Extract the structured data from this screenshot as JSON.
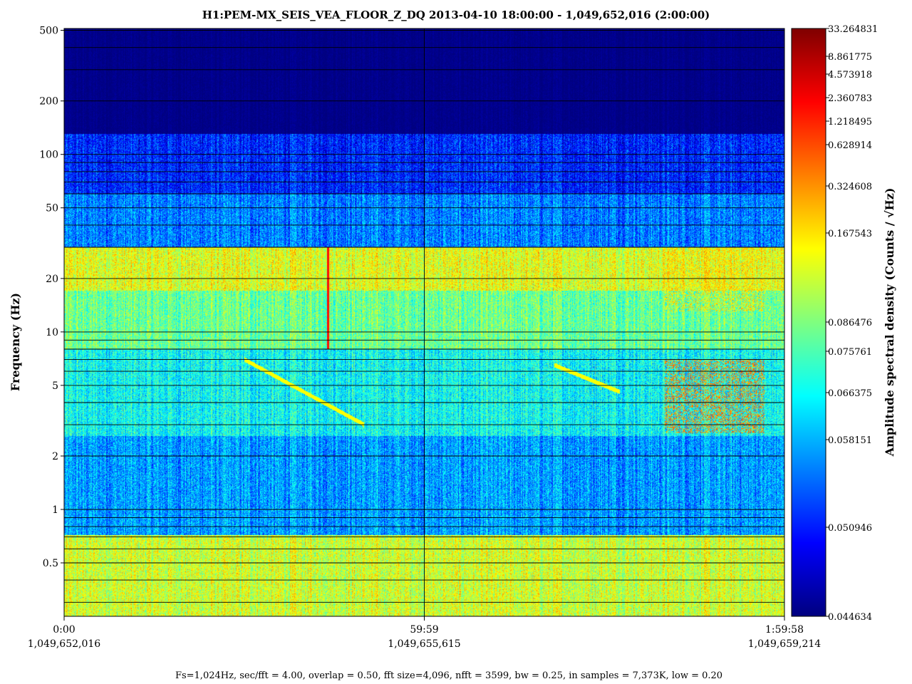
{
  "chart_data": {
    "type": "heatmap",
    "title": "H1:PEM-MX_SEIS_VEA_FLOOR_Z_DQ 2013-04-10 18:00:00 - 1,049,652,016 (2:00:00)",
    "ylabel": "Frequency (Hz)",
    "colorbar_label": "Amplitude spectral density (Counts / √Hz)",
    "footer": "Fs=1,024Hz, sec/fft = 4.00, overlap = 0.50, fft size=4,096, nfft = 3599, bw = 0.25, in samples = 7,373K, low = 0.20",
    "y_scale": "log",
    "ylim": [
      0.25,
      512
    ],
    "xlim": [
      0,
      7198
    ],
    "x_ticks": [
      {
        "value": 0,
        "label": "0:00",
        "gps": "1,049,652,016"
      },
      {
        "value": 3599,
        "label": "59:59",
        "gps": "1,049,655,615"
      },
      {
        "value": 7198,
        "label": "1:59:58",
        "gps": "1,049,659,214"
      }
    ],
    "y_ticks": [
      {
        "value": 500,
        "label": "500"
      },
      {
        "value": 200,
        "label": "200"
      },
      {
        "value": 100,
        "label": "100"
      },
      {
        "value": 50,
        "label": "50"
      },
      {
        "value": 20,
        "label": "20"
      },
      {
        "value": 10,
        "label": "10"
      },
      {
        "value": 5,
        "label": "5"
      },
      {
        "value": 2,
        "label": "2"
      },
      {
        "value": 1,
        "label": "1"
      },
      {
        "value": 0.5,
        "label": "0.5"
      }
    ],
    "colorbar_ticks": [
      "33.264831",
      "8.861775",
      "4.573918",
      "2.360783",
      "1.218495",
      "0.628914",
      "0.324608",
      "0.167543",
      "0.086476",
      "0.075761",
      "0.066375",
      "0.058151",
      "0.050946",
      "0.044634"
    ],
    "colormap": [
      "#00007f",
      "#0000ff",
      "#007fff",
      "#00ffff",
      "#7fff7f",
      "#ffff00",
      "#ff7f00",
      "#ff0000",
      "#7f0000"
    ],
    "bands": [
      {
        "f_low": 130,
        "f_high": 512,
        "level": 0.01
      },
      {
        "f_low": 60,
        "f_high": 130,
        "level": 0.16
      },
      {
        "f_low": 30,
        "f_high": 60,
        "level": 0.25
      },
      {
        "f_low": 17,
        "f_high": 30,
        "level": 0.6
      },
      {
        "f_low": 8,
        "f_high": 17,
        "level": 0.48
      },
      {
        "f_low": 2.6,
        "f_high": 8,
        "level": 0.38
      },
      {
        "f_low": 0.72,
        "f_high": 2.6,
        "level": 0.28
      },
      {
        "f_low": 0.25,
        "f_high": 0.72,
        "level": 0.58
      }
    ],
    "hot_spots": [
      {
        "t_start": 6000,
        "t_end": 7000,
        "f_low": 2.7,
        "f_high": 7,
        "level": 0.82
      },
      {
        "t_start": 6000,
        "t_end": 7000,
        "f_low": 13,
        "f_high": 30,
        "level": 0.72
      }
    ],
    "transients": [
      {
        "t": 2640,
        "f_low": 8,
        "f_high": 30,
        "level": 0.86
      }
    ],
    "chirps": [
      {
        "t_start": 1800,
        "t_end": 3000,
        "f_start": 7,
        "f_end": 3,
        "level": 0.62
      },
      {
        "t_start": 4900,
        "t_end": 5550,
        "f_start": 6.5,
        "f_end": 4.6,
        "level": 0.62
      }
    ]
  }
}
